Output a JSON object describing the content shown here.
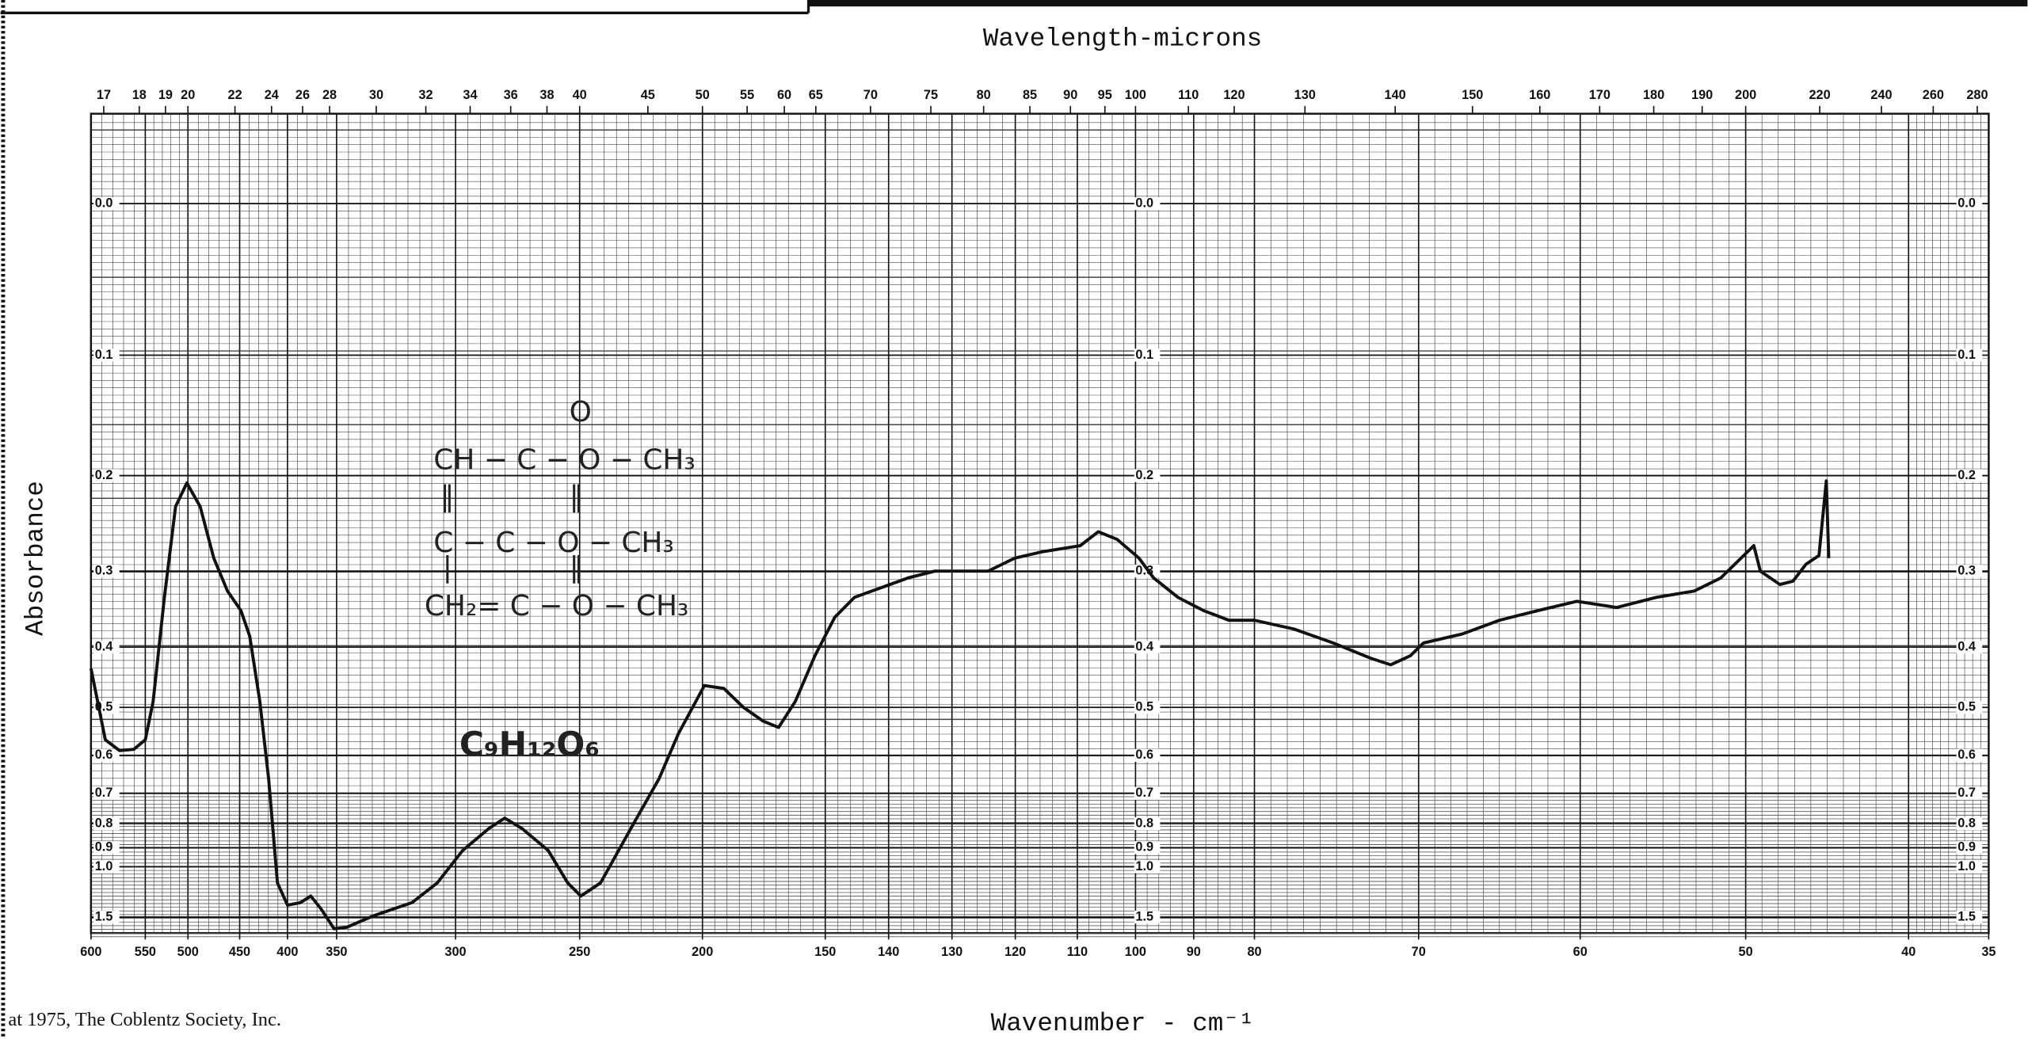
{
  "chart_data": {
    "type": "line",
    "x2label": "Wavelength-microns",
    "xlabel": "Wavenumber - cm⁻¹",
    "ylabel": "Absorbance",
    "footnote": "at 1975, The Coblentz Society, Inc.",
    "annotations": [
      "O",
      "CH − C − O − CH₃",
      "‖",
      "‖",
      "C − C − O − CH₃",
      "|",
      "‖",
      "CH₂= C − O − CH₃",
      "C₉H₁₂O₆"
    ],
    "color": "#111111",
    "xlim": [
      600,
      35
    ],
    "xticks": [
      600,
      550,
      500,
      450,
      400,
      350,
      300,
      250,
      200,
      150,
      140,
      130,
      120,
      110,
      100,
      90,
      80,
      70,
      60,
      50,
      40,
      35
    ],
    "x2ticks": [
      17,
      18,
      19,
      20,
      22,
      24,
      26,
      28,
      30,
      32,
      34,
      36,
      38,
      40,
      45,
      50,
      55,
      60,
      65,
      70,
      75,
      80,
      85,
      90,
      95,
      100,
      110,
      120,
      130,
      140,
      150,
      160,
      170,
      180,
      190,
      200,
      220,
      240,
      260,
      280
    ],
    "yscale": "absorbance",
    "ylim": [
      -0.05,
      2
    ],
    "yticks": [
      {
        "value": 0,
        "label": "0.0"
      },
      0.1,
      0.2,
      0.3,
      0.4,
      0.5,
      0.6,
      0.7,
      0.8,
      0.9,
      {
        "value": 1,
        "label": "1.0"
      },
      1.5
    ],
    "grid": true,
    "x": [
      600,
      586.8,
      573.7,
      560.5,
      550,
      540.8,
      527.6,
      514.5,
      501.3,
      488.2,
      475,
      461.8,
      448.7,
      439.5,
      428.9,
      419.7,
      410.5,
      400,
      386.8,
      376.3,
      365.8,
      352.6,
      345.8,
      334.1,
      318.3,
      307.7,
      297.1,
      286.5,
      280.2,
      273.3,
      262.7,
      254.8,
      249.5,
      241.5,
      228.3,
      217.7,
      209.8,
      199.2,
      191.3,
      183.3,
      175.4,
      169,
      162.2,
      154.2,
      148.5,
      145.4,
      136.9,
      132.7,
      124.3,
      120.1,
      115.8,
      109.5,
      106.4,
      103.2,
      99.4,
      96.9,
      92.7,
      88.4,
      84.2,
      80,
      77.6,
      75.2,
      72.9,
      71.7,
      70.5,
      69.7,
      67.3,
      65,
      62.6,
      60.2,
      57.8,
      55.4,
      53.1,
      51.5,
      49.5,
      49.1,
      47.9,
      47.1,
      46.3,
      45.5,
      45.05,
      44.9
    ],
    "values": [
      0.433,
      0.565,
      0.589,
      0.586,
      0.565,
      0.489,
      0.332,
      0.23,
      0.207,
      0.23,
      0.285,
      0.324,
      0.349,
      0.384,
      0.489,
      0.659,
      1.108,
      1.32,
      1.29,
      1.22,
      1.37,
      1.8,
      1.75,
      1.47,
      1.29,
      1.108,
      0.913,
      0.818,
      0.78,
      0.818,
      0.913,
      1.108,
      1.22,
      1.108,
      0.804,
      0.659,
      0.552,
      0.461,
      0.466,
      0.5,
      0.526,
      0.539,
      0.489,
      0.413,
      0.358,
      0.332,
      0.308,
      0.3,
      0.3,
      0.285,
      0.278,
      0.271,
      0.256,
      0.264,
      0.285,
      0.308,
      0.332,
      0.349,
      0.362,
      0.362,
      0.374,
      0.394,
      0.417,
      0.427,
      0.413,
      0.394,
      0.381,
      0.362,
      0.349,
      0.337,
      0.345,
      0.332,
      0.324,
      0.308,
      0.271,
      0.3,
      0.316,
      0.312,
      0.292,
      0.282,
      0.205,
      0.285
    ]
  }
}
